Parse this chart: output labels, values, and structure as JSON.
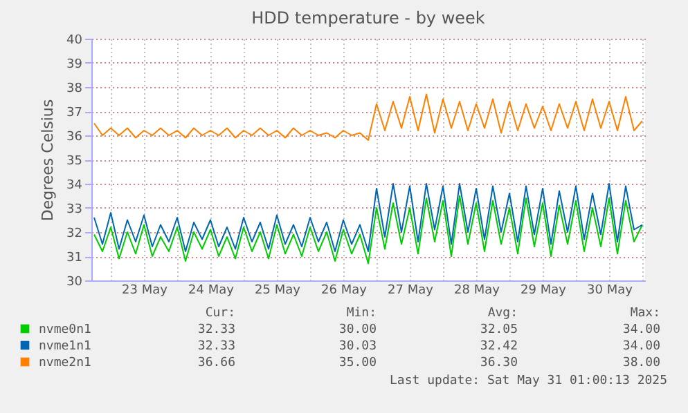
{
  "chart_data": {
    "type": "line",
    "title": "HDD temperature - by week",
    "ylabel": "Degrees Celsius",
    "x": [
      "2025-05-22T18:00",
      "2025-05-22T21:00",
      "2025-05-23T00:00",
      "2025-05-23T03:00",
      "2025-05-23T06:00",
      "2025-05-23T09:00",
      "2025-05-23T12:00",
      "2025-05-23T15:00",
      "2025-05-23T18:00",
      "2025-05-23T21:00",
      "2025-05-24T00:00",
      "2025-05-24T03:00",
      "2025-05-24T06:00",
      "2025-05-24T09:00",
      "2025-05-24T12:00",
      "2025-05-24T15:00",
      "2025-05-24T18:00",
      "2025-05-24T21:00",
      "2025-05-25T00:00",
      "2025-05-25T03:00",
      "2025-05-25T06:00",
      "2025-05-25T09:00",
      "2025-05-25T12:00",
      "2025-05-25T15:00",
      "2025-05-25T18:00",
      "2025-05-25T21:00",
      "2025-05-26T00:00",
      "2025-05-26T03:00",
      "2025-05-26T06:00",
      "2025-05-26T09:00",
      "2025-05-26T12:00",
      "2025-05-26T15:00",
      "2025-05-26T18:00",
      "2025-05-26T21:00",
      "2025-05-27T00:00",
      "2025-05-27T03:00",
      "2025-05-27T06:00",
      "2025-05-27T09:00",
      "2025-05-27T12:00",
      "2025-05-27T15:00",
      "2025-05-27T18:00",
      "2025-05-27T21:00",
      "2025-05-28T00:00",
      "2025-05-28T03:00",
      "2025-05-28T06:00",
      "2025-05-28T09:00",
      "2025-05-28T12:00",
      "2025-05-28T15:00",
      "2025-05-28T18:00",
      "2025-05-28T21:00",
      "2025-05-29T00:00",
      "2025-05-29T03:00",
      "2025-05-29T06:00",
      "2025-05-29T09:00",
      "2025-05-29T12:00",
      "2025-05-29T15:00",
      "2025-05-29T18:00",
      "2025-05-29T21:00",
      "2025-05-30T00:00",
      "2025-05-30T03:00",
      "2025-05-30T06:00",
      "2025-05-30T09:00",
      "2025-05-30T12:00",
      "2025-05-30T15:00",
      "2025-05-30T18:00",
      "2025-05-30T21:00",
      "2025-05-31T00:00"
    ],
    "series": [
      {
        "name": "nvme0n1",
        "color": "#00cc00",
        "values": [
          31.9,
          31.2,
          32.2,
          30.9,
          32.0,
          31.1,
          32.3,
          31.0,
          31.8,
          31.2,
          32.2,
          30.8,
          32.0,
          31.3,
          32.1,
          31.0,
          31.8,
          30.9,
          32.2,
          31.2,
          32.0,
          30.9,
          32.3,
          31.1,
          31.9,
          31.0,
          32.2,
          31.2,
          32.0,
          30.8,
          32.1,
          31.1,
          31.9,
          30.7,
          33.0,
          31.3,
          33.2,
          31.5,
          33.0,
          31.1,
          33.4,
          31.6,
          33.3,
          31.0,
          33.5,
          31.5,
          33.2,
          31.2,
          33.3,
          31.5,
          33.0,
          31.1,
          33.4,
          31.4,
          33.2,
          31.0,
          33.1,
          31.5,
          33.3,
          31.2,
          33.0,
          31.4,
          33.4,
          31.1,
          33.3,
          31.6,
          32.3
        ]
      },
      {
        "name": "nvme1n1",
        "color": "#0066b3",
        "values": [
          32.6,
          31.5,
          32.8,
          31.3,
          32.5,
          31.6,
          32.7,
          31.4,
          32.3,
          31.6,
          32.6,
          31.2,
          32.4,
          31.7,
          32.5,
          31.4,
          32.2,
          31.3,
          32.6,
          31.6,
          32.4,
          31.3,
          32.7,
          31.5,
          32.3,
          31.4,
          32.6,
          31.6,
          32.4,
          31.2,
          32.5,
          31.5,
          32.3,
          31.2,
          33.8,
          31.8,
          34.0,
          32.0,
          33.9,
          31.6,
          34.0,
          32.1,
          33.9,
          31.5,
          34.0,
          32.0,
          33.8,
          31.7,
          33.9,
          32.0,
          33.6,
          31.6,
          33.9,
          31.9,
          33.8,
          31.5,
          33.7,
          32.0,
          33.9,
          31.7,
          33.6,
          31.9,
          34.0,
          31.6,
          33.9,
          32.1,
          32.3
        ]
      },
      {
        "name": "nvme2n1",
        "color": "#ff8000",
        "values": [
          36.5,
          36.0,
          36.3,
          36.0,
          36.3,
          35.9,
          36.2,
          36.0,
          36.3,
          36.0,
          36.2,
          35.9,
          36.3,
          36.0,
          36.2,
          36.0,
          36.3,
          35.9,
          36.2,
          36.0,
          36.3,
          36.0,
          36.2,
          35.9,
          36.3,
          36.0,
          36.2,
          36.0,
          36.1,
          35.9,
          36.2,
          36.0,
          36.1,
          35.8,
          37.3,
          36.2,
          37.4,
          36.3,
          37.6,
          36.2,
          37.7,
          36.1,
          37.5,
          36.3,
          37.4,
          36.2,
          37.3,
          36.3,
          37.5,
          36.1,
          37.4,
          36.2,
          37.3,
          36.3,
          37.2,
          36.2,
          37.3,
          36.3,
          37.4,
          36.2,
          37.5,
          36.3,
          37.4,
          36.2,
          37.6,
          36.2,
          36.6
        ]
      }
    ],
    "xlim": [
      "2025-05-22T17:00",
      "2025-05-31T01:00"
    ],
    "xticks": [
      {
        "value": "2025-05-23T00:00",
        "label": null
      },
      {
        "value": "2025-05-23T12:00",
        "label": "23 May"
      },
      {
        "value": "2025-05-24T00:00",
        "label": null
      },
      {
        "value": "2025-05-24T12:00",
        "label": "24 May"
      },
      {
        "value": "2025-05-25T00:00",
        "label": null
      },
      {
        "value": "2025-05-25T12:00",
        "label": "25 May"
      },
      {
        "value": "2025-05-26T00:00",
        "label": null
      },
      {
        "value": "2025-05-26T12:00",
        "label": "26 May"
      },
      {
        "value": "2025-05-27T00:00",
        "label": null
      },
      {
        "value": "2025-05-27T12:00",
        "label": "27 May"
      },
      {
        "value": "2025-05-28T00:00",
        "label": null
      },
      {
        "value": "2025-05-28T12:00",
        "label": "28 May"
      },
      {
        "value": "2025-05-29T00:00",
        "label": null
      },
      {
        "value": "2025-05-29T12:00",
        "label": "29 May"
      },
      {
        "value": "2025-05-30T00:00",
        "label": null
      },
      {
        "value": "2025-05-30T12:00",
        "label": "30 May"
      },
      {
        "value": "2025-05-31T00:00",
        "label": null
      }
    ],
    "ylim": [
      30,
      40
    ],
    "yticks": [
      30,
      31,
      32,
      33,
      34,
      35,
      36,
      37,
      38,
      39,
      40
    ],
    "grid": true,
    "legend": "bottom",
    "annotations": [
      "Cur:",
      "Min:",
      "Avg:",
      "Max:",
      "32.33",
      "30.00",
      "32.05",
      "34.00",
      "32.33",
      "30.03",
      "32.42",
      "34.00",
      "36.66",
      "35.00",
      "36.30",
      "38.00",
      "Last update: Sat May 31 01:00:13 2025"
    ]
  }
}
